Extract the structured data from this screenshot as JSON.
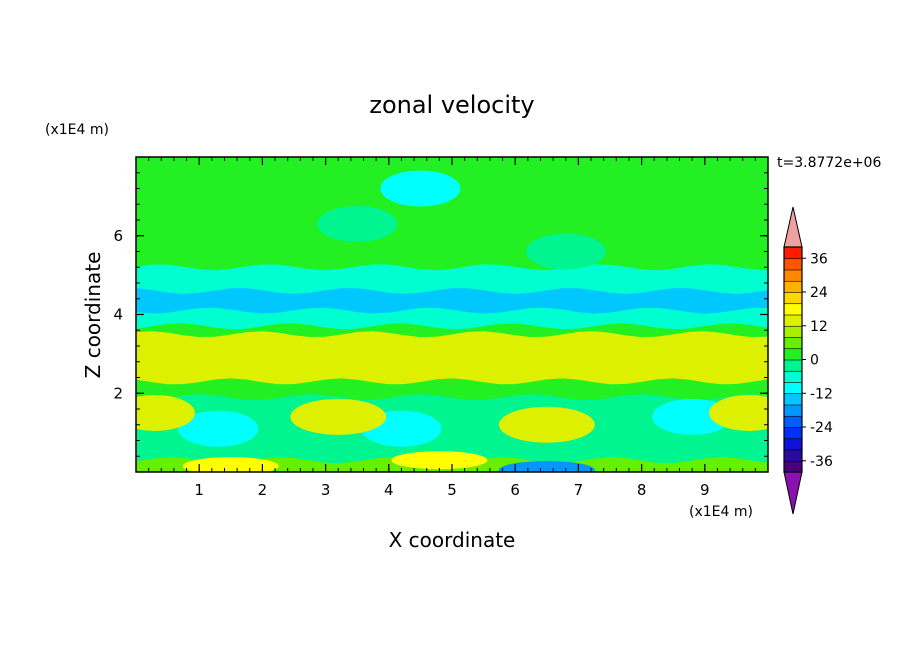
{
  "chart_data": {
    "type": "heatmap",
    "title": "zonal velocity",
    "xlabel": "X coordinate",
    "ylabel": "Z coordinate",
    "x_unit": "(x1E4 m)",
    "y_unit": "(x1E4 m)",
    "time_label": "t=3.8772e+06",
    "xlim": [
      0,
      10
    ],
    "ylim": [
      0,
      8
    ],
    "xticks": [
      1,
      2,
      3,
      4,
      5,
      6,
      7,
      8,
      9
    ],
    "yticks": [
      2,
      4,
      6
    ],
    "colorbar": {
      "levels": [
        -40,
        -36,
        -32,
        -28,
        -24,
        -20,
        -16,
        -12,
        -8,
        -4,
        0,
        4,
        8,
        12,
        16,
        20,
        24,
        28,
        32,
        36,
        40
      ],
      "colors": [
        "#4a007a",
        "#2a0aa0",
        "#1010d8",
        "#0030ff",
        "#0060ff",
        "#0098ff",
        "#00c8ff",
        "#00ffff",
        "#00ffd0",
        "#00f490",
        "#22f022",
        "#66f000",
        "#a8f000",
        "#dcf000",
        "#ffff00",
        "#ffd800",
        "#ffb000",
        "#ff8800",
        "#ff5500",
        "#ff1a00"
      ],
      "under_color": "#8a10b0",
      "over_color": "#f0a0a0",
      "tick_labels": [
        "36",
        "24",
        "12",
        "0",
        "-12",
        "-24",
        "-36"
      ],
      "tick_values": [
        36,
        24,
        12,
        0,
        -12,
        -24,
        -36
      ]
    },
    "layers": [
      {
        "z_range": [
          7.0,
          8.0
        ],
        "value": 0
      },
      {
        "z_range": [
          5.2,
          7.0
        ],
        "value": 1
      },
      {
        "z_range": [
          4.6,
          5.2
        ],
        "value": -5
      },
      {
        "z_range": [
          4.1,
          4.6
        ],
        "value": -13
      },
      {
        "z_range": [
          3.7,
          4.1
        ],
        "value": -6
      },
      {
        "z_range": [
          3.5,
          3.7
        ],
        "value": 3
      },
      {
        "z_range": [
          2.3,
          3.5
        ],
        "value": 13
      },
      {
        "z_range": [
          1.9,
          2.3
        ],
        "value": 2
      },
      {
        "z_range": [
          0.3,
          1.9
        ],
        "value": -3
      },
      {
        "z_range": [
          0.0,
          0.3
        ],
        "value": 6
      }
    ],
    "features": [
      {
        "x": 4.5,
        "z": 7.2,
        "value": -9
      },
      {
        "x": 3.5,
        "z": 6.3,
        "value": -3
      },
      {
        "x": 6.8,
        "z": 5.6,
        "value": -4
      },
      {
        "x": 1.3,
        "z": 1.1,
        "value": -10
      },
      {
        "x": 4.2,
        "z": 1.1,
        "value": -9
      },
      {
        "x": 8.8,
        "z": 1.4,
        "value": -11
      },
      {
        "x": 3.2,
        "z": 1.4,
        "value": 15
      },
      {
        "x": 6.5,
        "z": 1.2,
        "value": 15
      },
      {
        "x": 0.3,
        "z": 1.5,
        "value": 12
      },
      {
        "x": 9.7,
        "z": 1.5,
        "value": 12
      },
      {
        "x": 1.5,
        "z": 0.15,
        "value": 17
      },
      {
        "x": 4.8,
        "z": 0.3,
        "value": 16
      },
      {
        "x": 6.5,
        "z": 0.05,
        "value": -20
      }
    ]
  }
}
